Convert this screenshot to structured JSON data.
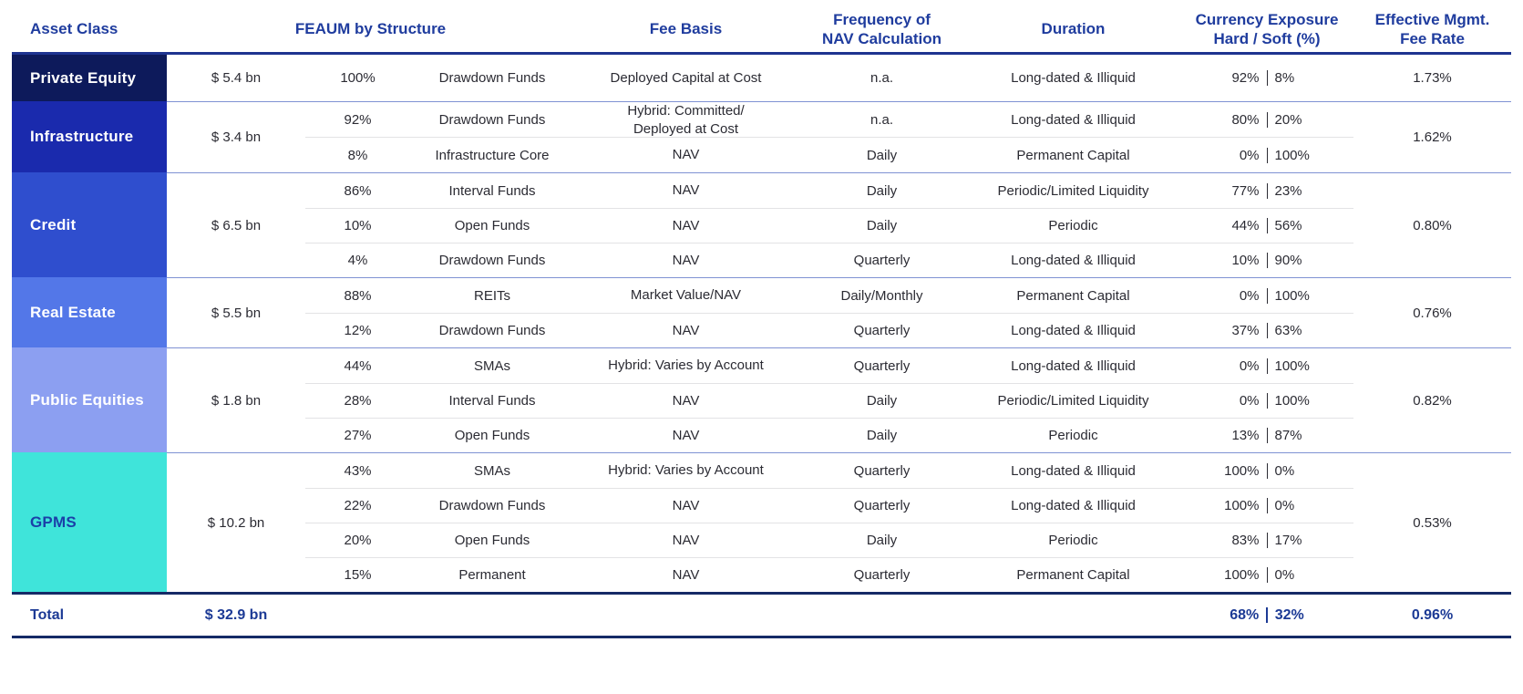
{
  "colors": {
    "accent_blue": "#1f3c9e",
    "header_rule": "#1e3390",
    "total_rule": "#152a66",
    "group_divider": "#7f92d3",
    "row_divider": "#e3e3e5",
    "body_text": "#2b2b33",
    "total_text": "#1c3a95"
  },
  "table": {
    "headers": {
      "asset_class": "Asset Class",
      "feaum": "FEAUM by Structure",
      "fee_basis": "Fee Basis",
      "frequency": "Frequency of\nNAV Calculation",
      "duration": "Duration",
      "currency": "Currency Exposure\nHard / Soft (%)",
      "fee_rate": "Effective Mgmt.\nFee Rate"
    },
    "groups": [
      {
        "name": "Private Equity",
        "feaum": "$ 5.4 bn",
        "fee_rate": "1.73%",
        "color": "#0d1a5b",
        "text_color": "#ffffff",
        "rows": [
          {
            "pct": "100%",
            "structure": "Drawdown Funds",
            "fee_basis": "Deployed Capital at Cost",
            "frequency": "n.a.",
            "duration": "Long-dated & Illiquid",
            "hard": "92%",
            "soft": "8%"
          }
        ]
      },
      {
        "name": "Infrastructure",
        "feaum": "$ 3.4 bn",
        "fee_rate": "1.62%",
        "color": "#1a2aad",
        "text_color": "#ffffff",
        "rows": [
          {
            "pct": "92%",
            "structure": "Drawdown Funds",
            "fee_basis": "Hybrid: Committed/\nDeployed at Cost",
            "frequency": "n.a.",
            "duration": "Long-dated & Illiquid",
            "hard": "80%",
            "soft": "20%"
          },
          {
            "pct": "8%",
            "structure": "Infrastructure Core",
            "fee_basis": "NAV",
            "frequency": "Daily",
            "duration": "Permanent Capital",
            "hard": "0%",
            "soft": "100%"
          }
        ]
      },
      {
        "name": "Credit",
        "feaum": "$ 6.5 bn",
        "fee_rate": "0.80%",
        "color": "#2f4ece",
        "text_color": "#ffffff",
        "rows": [
          {
            "pct": "86%",
            "structure": "Interval Funds",
            "fee_basis": "NAV",
            "frequency": "Daily",
            "duration": "Periodic/Limited Liquidity",
            "hard": "77%",
            "soft": "23%"
          },
          {
            "pct": "10%",
            "structure": "Open Funds",
            "fee_basis": "NAV",
            "frequency": "Daily",
            "duration": "Periodic",
            "hard": "44%",
            "soft": "56%"
          },
          {
            "pct": "4%",
            "structure": "Drawdown Funds",
            "fee_basis": "NAV",
            "frequency": "Quarterly",
            "duration": "Long-dated & Illiquid",
            "hard": "10%",
            "soft": "90%"
          }
        ]
      },
      {
        "name": "Real Estate",
        "feaum": "$ 5.5 bn",
        "fee_rate": "0.76%",
        "color": "#5377e8",
        "text_color": "#ffffff",
        "rows": [
          {
            "pct": "88%",
            "structure": "REITs",
            "fee_basis": "Market Value/NAV",
            "frequency": "Daily/Monthly",
            "duration": "Permanent Capital",
            "hard": "0%",
            "soft": "100%"
          },
          {
            "pct": "12%",
            "structure": "Drawdown Funds",
            "fee_basis": "NAV",
            "frequency": "Quarterly",
            "duration": "Long-dated & Illiquid",
            "hard": "37%",
            "soft": "63%"
          }
        ]
      },
      {
        "name": "Public Equities",
        "feaum": "$ 1.8 bn",
        "fee_rate": "0.82%",
        "color": "#8c9ff1",
        "text_color": "#ffffff",
        "rows": [
          {
            "pct": "44%",
            "structure": "SMAs",
            "fee_basis": "Hybrid: Varies by Account",
            "frequency": "Quarterly",
            "duration": "Long-dated & Illiquid",
            "hard": "0%",
            "soft": "100%"
          },
          {
            "pct": "28%",
            "structure": "Interval Funds",
            "fee_basis": "NAV",
            "frequency": "Daily",
            "duration": "Periodic/Limited Liquidity",
            "hard": "0%",
            "soft": "100%"
          },
          {
            "pct": "27%",
            "structure": "Open Funds",
            "fee_basis": "NAV",
            "frequency": "Daily",
            "duration": "Periodic",
            "hard": "13%",
            "soft": "87%"
          }
        ]
      },
      {
        "name": "GPMS",
        "feaum": "$ 10.2 bn",
        "fee_rate": "0.53%",
        "color": "#3fe4da",
        "text_color": "#1b3fa8",
        "rows": [
          {
            "pct": "43%",
            "structure": "SMAs",
            "fee_basis": "Hybrid: Varies by Account",
            "frequency": "Quarterly",
            "duration": "Long-dated & Illiquid",
            "hard": "100%",
            "soft": "0%"
          },
          {
            "pct": "22%",
            "structure": "Drawdown Funds",
            "fee_basis": "NAV",
            "frequency": "Quarterly",
            "duration": "Long-dated & Illiquid",
            "hard": "100%",
            "soft": "0%"
          },
          {
            "pct": "20%",
            "structure": "Open Funds",
            "fee_basis": "NAV",
            "frequency": "Daily",
            "duration": "Periodic",
            "hard": "83%",
            "soft": "17%"
          },
          {
            "pct": "15%",
            "structure": "Permanent",
            "fee_basis": "NAV",
            "frequency": "Quarterly",
            "duration": "Permanent Capital",
            "hard": "100%",
            "soft": "0%"
          }
        ]
      }
    ],
    "total": {
      "label": "Total",
      "feaum": "$ 32.9 bn",
      "hard": "68%",
      "soft": "32%",
      "fee_rate": "0.96%"
    }
  }
}
